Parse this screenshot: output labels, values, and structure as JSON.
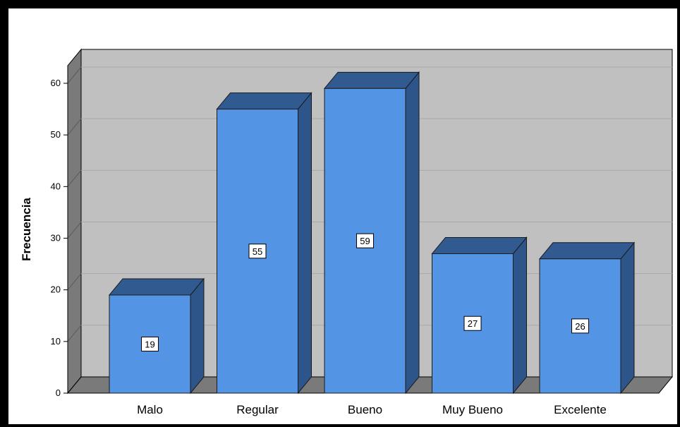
{
  "chart_data": {
    "type": "bar",
    "categories": [
      "Malo",
      "Regular",
      "Bueno",
      "Muy Bueno",
      "Excelente"
    ],
    "values": [
      19,
      55,
      59,
      27,
      26
    ],
    "xlabel": "",
    "ylabel": "Frecuencia",
    "ylim": [
      0,
      60
    ],
    "yticks": [
      0,
      10,
      20,
      30,
      40,
      50,
      60
    ],
    "grid": true,
    "style": "3d",
    "data_labels": true,
    "colors": {
      "bar_front": "#5494e4",
      "bar_top": "#315b90",
      "bar_side": "#2e5589",
      "plot_back": "#c0c0c0",
      "plot_wall": "#7a7a7a",
      "plot_floor": "#7a7a7a",
      "gridline": "#a8a8a8"
    }
  }
}
